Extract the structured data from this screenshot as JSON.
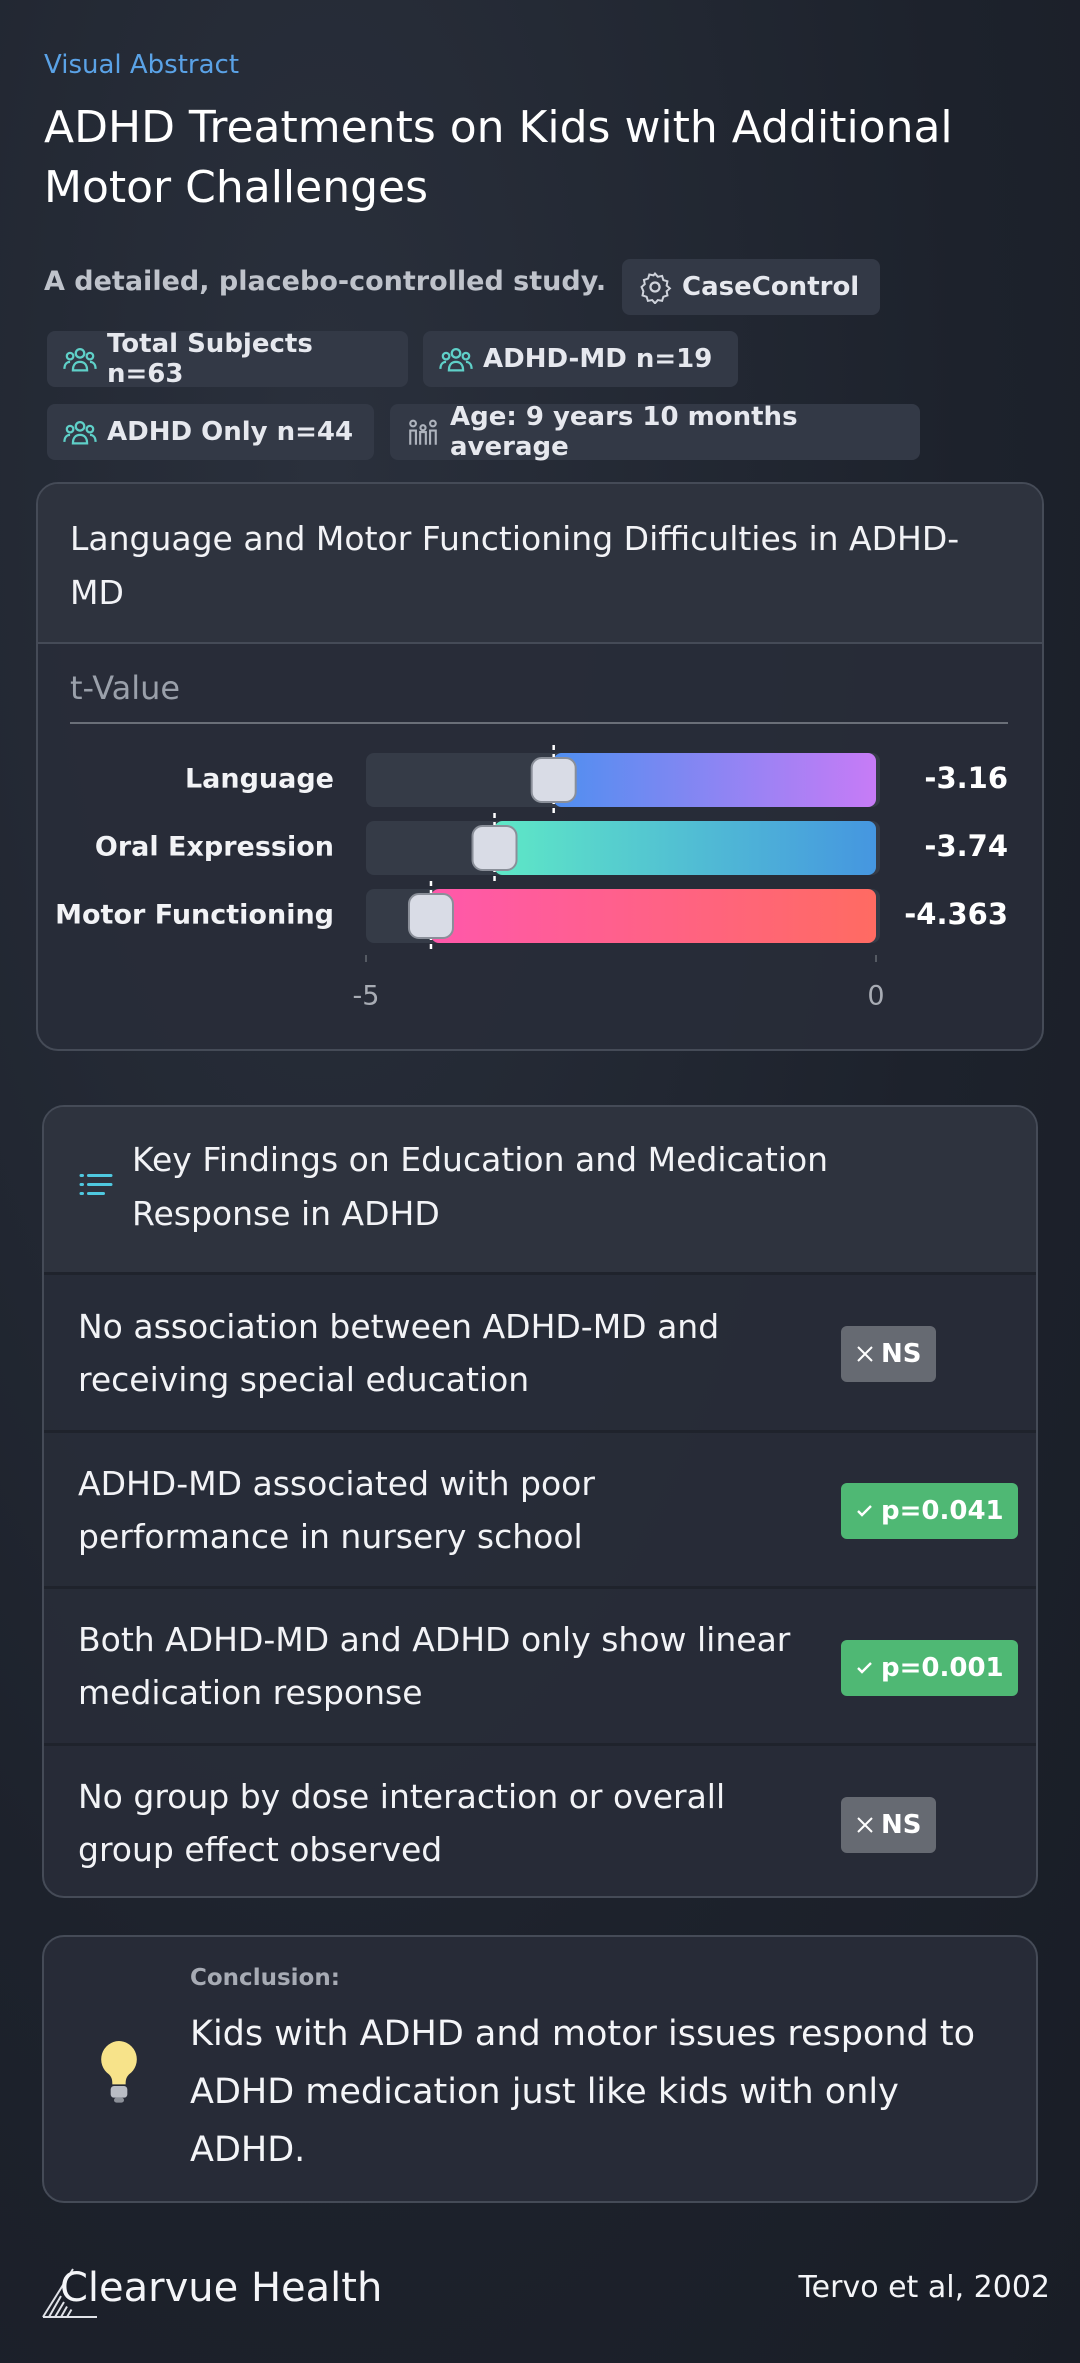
{
  "header": {
    "kicker": "Visual Abstract",
    "title": "ADHD Treatments on Kids with Additional Motor Challenges",
    "subtitle": "A detailed, placebo-controlled study.",
    "chips": [
      "CaseControl",
      "Total Subjects n=63",
      "ADHD-MD n=19",
      "ADHD Only n=44",
      "Age: 9 years 10 months average"
    ]
  },
  "chart_data": {
    "type": "bar",
    "orientation": "horizontal",
    "title": "Language and Motor Functioning Difficulties in ADHD-MD",
    "x_label": "t-Value",
    "categories": [
      "Language",
      "Oral Expression",
      "Motor Functioning"
    ],
    "values": [
      -3.16,
      -3.74,
      -4.363
    ],
    "colors": [
      [
        "#4f8ff0",
        "#c77bf6"
      ],
      [
        "#5ee8c6",
        "#4596e0"
      ],
      [
        "#ff58ab",
        "#ff6b62"
      ]
    ],
    "xlim": [
      -5,
      0
    ],
    "xticks": [
      -5,
      0
    ],
    "grid": false
  },
  "findings": {
    "title": "Key Findings on Education and Medication Response in ADHD",
    "items": [
      {
        "text": "No association between ADHD-MD and receiving special education",
        "badge": "NS",
        "color": "#666a72"
      },
      {
        "text": "ADHD-MD associated with poor performance in nursery school",
        "badge": "p=0.041",
        "color": "#4fb874"
      },
      {
        "text": "Both ADHD-MD and ADHD only show linear medication response",
        "badge": "p=0.001",
        "color": "#4fb874"
      },
      {
        "text": "No group by dose interaction or overall group effect observed",
        "badge": "NS",
        "color": "#666a72"
      }
    ]
  },
  "conclusion": {
    "label": "Conclusion:",
    "text": "Kids with ADHD and motor issues respond to ADHD medication just like kids with only ADHD."
  },
  "footer": {
    "brand": "Clearvue Health",
    "citation": "Tervo et al, 2002"
  }
}
